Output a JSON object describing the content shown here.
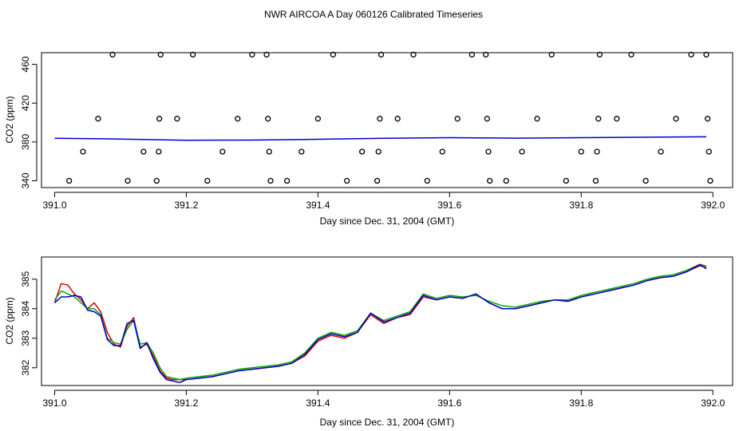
{
  "title": "NWR AIRCOA A  Day 060126  Calibrated Timeseries",
  "chart_data": [
    {
      "type": "scatter",
      "title": "",
      "xlabel": "Day since Dec. 31, 2004 (GMT)",
      "ylabel": "CO2 (ppm)",
      "xlim": [
        390.98,
        392.03
      ],
      "ylim": [
        333,
        472
      ],
      "x_ticks": [
        "391.0",
        "391.2",
        "391.4",
        "391.6",
        "391.8",
        "392.0"
      ],
      "y_ticks": [
        "340",
        "380",
        "420",
        "460"
      ],
      "points": [
        [
          391.022,
          340
        ],
        [
          391.043,
          370
        ],
        [
          391.066,
          404
        ],
        [
          391.088,
          470
        ],
        [
          391.111,
          340
        ],
        [
          391.135,
          370
        ],
        [
          391.155,
          340
        ],
        [
          391.158,
          370
        ],
        [
          391.159,
          404
        ],
        [
          391.161,
          470
        ],
        [
          391.186,
          404
        ],
        [
          391.21,
          470
        ],
        [
          391.232,
          340
        ],
        [
          391.255,
          370
        ],
        [
          391.278,
          404
        ],
        [
          391.3,
          470
        ],
        [
          391.322,
          470
        ],
        [
          391.324,
          404
        ],
        [
          391.326,
          370
        ],
        [
          391.328,
          340
        ],
        [
          391.353,
          340
        ],
        [
          391.375,
          370
        ],
        [
          391.4,
          404
        ],
        [
          391.423,
          470
        ],
        [
          391.444,
          340
        ],
        [
          391.467,
          370
        ],
        [
          391.49,
          340
        ],
        [
          391.492,
          370
        ],
        [
          391.494,
          404
        ],
        [
          391.496,
          470
        ],
        [
          391.521,
          404
        ],
        [
          391.545,
          470
        ],
        [
          391.566,
          340
        ],
        [
          391.589,
          370
        ],
        [
          391.612,
          404
        ],
        [
          391.634,
          470
        ],
        [
          391.655,
          470
        ],
        [
          391.657,
          404
        ],
        [
          391.659,
          370
        ],
        [
          391.661,
          340
        ],
        [
          391.686,
          340
        ],
        [
          391.71,
          370
        ],
        [
          391.733,
          404
        ],
        [
          391.755,
          470
        ],
        [
          391.777,
          340
        ],
        [
          391.8,
          370
        ],
        [
          391.822,
          340
        ],
        [
          391.824,
          370
        ],
        [
          391.826,
          404
        ],
        [
          391.828,
          470
        ],
        [
          391.854,
          404
        ],
        [
          391.876,
          470
        ],
        [
          391.898,
          340
        ],
        [
          391.921,
          370
        ],
        [
          391.944,
          404
        ],
        [
          391.967,
          470
        ],
        [
          391.99,
          470
        ],
        [
          391.992,
          404
        ],
        [
          391.994,
          370
        ],
        [
          391.996,
          340
        ]
      ],
      "series": [
        {
          "color": "#0000cc",
          "x": [
            391.0,
            391.1,
            391.2,
            391.3,
            391.4,
            391.5,
            391.6,
            391.7,
            391.8,
            391.9,
            391.99
          ],
          "values": [
            383.8,
            383.0,
            381.8,
            381.9,
            382.8,
            383.8,
            384.4,
            383.9,
            384.4,
            384.9,
            385.3
          ]
        }
      ]
    },
    {
      "type": "line",
      "title": "",
      "xlabel": "Day since Dec. 31, 2004 (GMT)",
      "ylabel": "CO2 (ppm)",
      "xlim": [
        390.98,
        392.03
      ],
      "ylim": [
        381.4,
        385.75
      ],
      "x_ticks": [
        "391.0",
        "391.2",
        "391.4",
        "391.6",
        "391.8",
        "392.0"
      ],
      "y_ticks": [
        "382",
        "383",
        "384",
        "385"
      ],
      "x": [
        391.0,
        391.01,
        391.02,
        391.03,
        391.04,
        391.05,
        391.06,
        391.07,
        391.08,
        391.09,
        391.1,
        391.11,
        391.12,
        391.13,
        391.14,
        391.15,
        391.16,
        391.17,
        391.18,
        391.19,
        391.2,
        391.22,
        391.24,
        391.26,
        391.28,
        391.3,
        391.32,
        391.34,
        391.36,
        391.38,
        391.4,
        391.42,
        391.44,
        391.46,
        391.48,
        391.5,
        391.52,
        391.54,
        391.56,
        391.58,
        391.6,
        391.62,
        391.64,
        391.66,
        391.68,
        391.7,
        391.72,
        391.74,
        391.76,
        391.78,
        391.8,
        391.82,
        391.84,
        391.86,
        391.88,
        391.9,
        391.92,
        391.94,
        391.96,
        391.98,
        391.99
      ],
      "series": [
        {
          "color": "#dd0000",
          "values": [
            384.2,
            384.85,
            384.8,
            384.5,
            384.3,
            384.0,
            384.2,
            383.9,
            383.2,
            382.8,
            382.7,
            383.4,
            383.7,
            382.7,
            382.8,
            382.4,
            381.9,
            381.65,
            381.6,
            381.6,
            381.6,
            381.65,
            381.7,
            381.8,
            381.9,
            381.95,
            382.0,
            382.05,
            382.15,
            382.4,
            382.9,
            383.1,
            383.0,
            383.2,
            383.8,
            383.5,
            383.7,
            383.8,
            384.4,
            384.3,
            384.4,
            384.35,
            384.5,
            384.2,
            384.0,
            384.0,
            384.1,
            384.2,
            384.3,
            384.25,
            384.4,
            384.5,
            384.6,
            384.7,
            384.8,
            384.95,
            385.05,
            385.1,
            385.25,
            385.45,
            385.4
          ]
        },
        {
          "color": "#00aa00",
          "values": [
            384.3,
            384.6,
            384.5,
            384.4,
            384.2,
            384.0,
            384.0,
            383.8,
            383.0,
            382.85,
            382.8,
            383.3,
            383.6,
            382.8,
            382.85,
            382.5,
            382.0,
            381.7,
            381.65,
            381.6,
            381.65,
            381.7,
            381.75,
            381.85,
            381.95,
            382.0,
            382.05,
            382.1,
            382.2,
            382.5,
            383.0,
            383.2,
            383.1,
            383.25,
            383.85,
            383.6,
            383.75,
            383.9,
            384.5,
            384.35,
            384.45,
            384.4,
            384.45,
            384.25,
            384.1,
            384.05,
            384.15,
            384.25,
            384.3,
            384.3,
            384.45,
            384.55,
            384.65,
            384.75,
            384.85,
            385.0,
            385.1,
            385.15,
            385.3,
            385.5,
            385.45
          ]
        },
        {
          "color": "#0000cc",
          "values": [
            384.2,
            384.4,
            384.4,
            384.45,
            384.4,
            383.95,
            383.9,
            383.75,
            382.95,
            382.75,
            382.75,
            383.5,
            383.6,
            382.65,
            382.85,
            382.3,
            381.85,
            381.6,
            381.55,
            381.5,
            381.6,
            381.65,
            381.7,
            381.8,
            381.9,
            381.95,
            382.0,
            382.05,
            382.15,
            382.45,
            382.95,
            383.15,
            383.05,
            383.2,
            383.85,
            383.55,
            383.7,
            383.85,
            384.45,
            384.3,
            384.4,
            384.35,
            384.5,
            384.2,
            384.0,
            384.0,
            384.1,
            384.2,
            384.3,
            384.25,
            384.4,
            384.5,
            384.6,
            384.7,
            384.8,
            384.95,
            385.05,
            385.1,
            385.25,
            385.5,
            385.35
          ]
        }
      ]
    }
  ]
}
